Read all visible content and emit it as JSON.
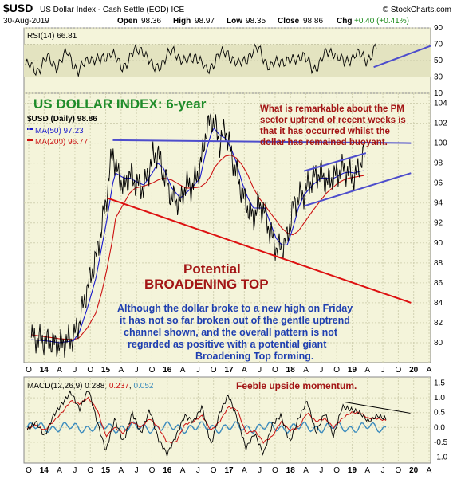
{
  "header": {
    "symbol": "$USD",
    "name": "US Dollar Index - Cash Settle (EOD) ICE",
    "source": "© StockCharts.com",
    "date": "30-Aug-2019",
    "open_label": "Open",
    "open": "98.36",
    "high_label": "High",
    "high": "98.97",
    "low_label": "Low",
    "low": "98.35",
    "close_label": "Close",
    "close": "98.86",
    "chg_label": "Chg",
    "chg": "+0.40 (+0.41%)"
  },
  "colors": {
    "price": "#000000",
    "ma50": "#1a1acc",
    "ma200": "#cc1111",
    "channel": "#4d4dcc",
    "support": "#dd1111",
    "annotation_blue": "#1f3fb0",
    "annotation_red": "#a31515",
    "title_green": "#1f8c2a",
    "pane_bg": "#f4f4da",
    "rsi_band": "#e3e3c0"
  },
  "annotations": {
    "title": "US DOLLAR INDEX: 6-year",
    "pm_note": [
      "What is remarkable about the PM",
      "sector uptrend of recent weeks is",
      "that it has occurred whilst the",
      "dollar has remained buoyant."
    ],
    "potential": "Potential",
    "broadening": "BROADENING TOP",
    "body": [
      "Although the dollar broke to a new high on Friday",
      "it has not so far broken out of the gentle uptrend",
      "channel shown, and the overall pattern is not",
      "regarded as positive with a potential giant",
      "Broadening Top forming."
    ],
    "feeble": "Feeble upside momentum."
  },
  "chart_data": [
    {
      "type": "line",
      "name": "rsi_panel",
      "legend": "RSI(14) 66.81",
      "ylim": [
        10,
        90
      ],
      "yticks": [
        "10",
        "30",
        "50",
        "70",
        "90"
      ],
      "series": [
        {
          "name": "RSI(14)",
          "values": [
            45,
            38,
            52,
            44,
            60,
            35,
            55,
            48,
            62,
            41,
            57,
            66,
            39,
            50,
            63,
            46,
            58,
            36,
            54,
            61,
            43,
            57,
            64,
            40,
            52,
            47,
            59,
            38,
            55,
            62,
            45,
            60,
            50,
            66.81
          ]
        }
      ],
      "trendline": {
        "from": [
          0.86,
          42
        ],
        "to": [
          1.0,
          68
        ]
      }
    },
    {
      "type": "line",
      "name": "price_panel",
      "legend": "$USD (Daily) 98.86",
      "legend_ma50": "MA(50) 97.23",
      "legend_ma200": "MA(200) 96.77",
      "ylim": [
        78,
        105
      ],
      "yticks": [
        "80",
        "82",
        "84",
        "86",
        "88",
        "90",
        "92",
        "94",
        "96",
        "98",
        "100",
        "102",
        "104"
      ],
      "xticks": [
        "O",
        "14",
        "A",
        "J",
        "O",
        "15",
        "A",
        "J",
        "O",
        "16",
        "A",
        "J",
        "O",
        "17",
        "A",
        "J",
        "O",
        "18",
        "A",
        "J",
        "O",
        "19",
        "A",
        "J",
        "O",
        "20",
        "A"
      ],
      "x": [
        2013.75,
        2014.0,
        2014.25,
        2014.5,
        2014.6,
        2014.75,
        2014.9,
        2015.0,
        2015.1,
        2015.2,
        2015.25,
        2015.4,
        2015.5,
        2015.6,
        2015.75,
        2015.9,
        2016.0,
        2016.1,
        2016.25,
        2016.4,
        2016.5,
        2016.6,
        2016.75,
        2016.85,
        2016.95,
        2017.0,
        2017.1,
        2017.2,
        2017.3,
        2017.4,
        2017.5,
        2017.6,
        2017.7,
        2017.8,
        2017.9,
        2018.0,
        2018.1,
        2018.2,
        2018.3,
        2018.4,
        2018.5,
        2018.6,
        2018.75,
        2018.9,
        2019.0,
        2019.1,
        2019.2,
        2019.3,
        2019.4,
        2019.5,
        2019.6,
        2019.67
      ],
      "series": [
        {
          "name": "$USD",
          "values": [
            80.5,
            80.2,
            79.8,
            80.5,
            82.0,
            85.5,
            88.5,
            91.5,
            95.0,
            99.5,
            97.5,
            95.5,
            97.0,
            96.0,
            95.5,
            98.5,
            99.0,
            97.0,
            94.5,
            94.0,
            96.0,
            95.5,
            97.5,
            101.0,
            102.5,
            102.0,
            100.0,
            101.5,
            99.0,
            97.0,
            95.0,
            93.5,
            92.5,
            94.0,
            93.0,
            91.0,
            89.5,
            89.5,
            90.5,
            93.5,
            94.5,
            95.0,
            96.5,
            97.0,
            96.0,
            96.5,
            97.0,
            97.5,
            97.0,
            96.5,
            98.0,
            98.86
          ]
        },
        {
          "name": "MA(50)",
          "values": [
            80.3,
            80.2,
            80.0,
            80.2,
            81.0,
            83.5,
            86.5,
            89.5,
            92.5,
            96.0,
            97.0,
            96.5,
            96.5,
            96.2,
            95.8,
            97.0,
            98.0,
            97.5,
            95.5,
            94.5,
            95.0,
            95.5,
            96.5,
            99.0,
            101.0,
            101.5,
            100.8,
            100.5,
            99.5,
            98.0,
            96.0,
            94.5,
            93.5,
            93.5,
            93.5,
            92.0,
            90.5,
            89.8,
            89.8,
            91.5,
            93.5,
            94.8,
            95.8,
            96.5,
            96.5,
            96.4,
            96.7,
            97.0,
            97.1,
            97.0,
            97.2,
            97.23
          ]
        },
        {
          "name": "MA(200)",
          "values": [
            80.8,
            80.6,
            80.4,
            80.3,
            80.5,
            81.5,
            83.0,
            85.0,
            87.5,
            90.5,
            92.5,
            94.0,
            95.0,
            95.5,
            95.7,
            96.0,
            96.3,
            96.5,
            96.3,
            95.8,
            95.5,
            95.5,
            95.6,
            96.0,
            96.8,
            97.5,
            98.2,
            98.7,
            98.8,
            98.5,
            97.8,
            96.8,
            95.5,
            94.5,
            93.8,
            93.0,
            92.3,
            91.5,
            91.0,
            90.8,
            91.2,
            92.0,
            93.2,
            94.3,
            95.0,
            95.5,
            96.0,
            96.3,
            96.5,
            96.6,
            96.7,
            96.77
          ]
        }
      ],
      "trendlines": [
        {
          "name": "upper-broadening",
          "color": "channel",
          "from": [
            2015.2,
            100.3
          ],
          "to": [
            2020.5,
            100.0
          ]
        },
        {
          "name": "channel-top",
          "color": "channel",
          "from": [
            2018.6,
            97.2
          ],
          "to": [
            2019.7,
            99.0
          ]
        },
        {
          "name": "channel-bottom",
          "color": "channel",
          "from": [
            2018.6,
            93.7
          ],
          "to": [
            2020.5,
            97.0
          ]
        },
        {
          "name": "broadening-support",
          "color": "support",
          "from": [
            2015.1,
            94.5
          ],
          "to": [
            2020.5,
            84.0
          ]
        }
      ]
    },
    {
      "type": "line",
      "name": "macd_panel",
      "legend_label": "MACD(12,26,9)",
      "legend_macd": "0.288",
      "legend_signal": "0.237",
      "legend_hist": "0.052",
      "ylim": [
        -1.2,
        1.7
      ],
      "yticks": [
        "-1.0",
        "-0.5",
        "0.0",
        "0.5",
        "1.0",
        "1.5"
      ],
      "xticks": [
        "O",
        "14",
        "A",
        "J",
        "O",
        "15",
        "A",
        "J",
        "O",
        "16",
        "A",
        "J",
        "O",
        "17",
        "A",
        "J",
        "O",
        "18",
        "A",
        "J",
        "O",
        "19",
        "A",
        "J",
        "O",
        "20",
        "A"
      ],
      "series": [
        {
          "name": "MACD",
          "values": [
            -0.1,
            0.2,
            -0.3,
            0.4,
            0.8,
            1.2,
            0.6,
            1.3,
            0.2,
            -0.8,
            0.3,
            -0.5,
            0.5,
            -0.2,
            0.6,
            -0.4,
            -0.9,
            -0.3,
            0.4,
            0.2,
            0.7,
            -0.6,
            0.5,
            1.1,
            0.3,
            -0.7,
            -0.2,
            -0.9,
            0.1,
            0.4,
            -0.5,
            0.3,
            0.9,
            -0.2,
            0.5,
            -0.3,
            0.7,
            0.6,
            0.5,
            0.2,
            0.4,
            0.288
          ]
        },
        {
          "name": "Signal",
          "values": [
            -0.05,
            0.1,
            -0.1,
            0.2,
            0.5,
            0.9,
            0.8,
            1.0,
            0.6,
            -0.3,
            0.0,
            -0.2,
            0.2,
            0.0,
            0.3,
            0.0,
            -0.5,
            -0.5,
            0.1,
            0.2,
            0.4,
            -0.1,
            0.2,
            0.7,
            0.6,
            -0.2,
            -0.1,
            -0.5,
            -0.3,
            0.2,
            -0.1,
            0.0,
            0.5,
            0.2,
            0.3,
            0.0,
            0.3,
            0.5,
            0.5,
            0.3,
            0.3,
            0.237
          ]
        }
      ],
      "trendline": {
        "from": [
          0.79,
          0.85
        ],
        "to": [
          0.95,
          0.48
        ]
      }
    }
  ]
}
